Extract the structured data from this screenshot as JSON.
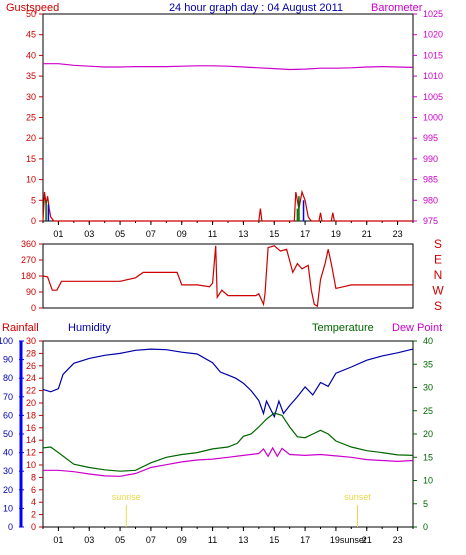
{
  "title": "24 hour graph day : 04 August 2011",
  "colors": {
    "red": "#cc0000",
    "magenta": "#cc00cc",
    "blue": "#0000aa",
    "bright_blue": "#0000ff",
    "green": "#006600",
    "dark_green": "#008000",
    "yellow": "#e8d84a",
    "grid": "#000000"
  },
  "chart_data": [
    {
      "type": "line",
      "name": "gust-barometer",
      "labels": {
        "left": "Gustspeed",
        "right": "Barometer"
      },
      "x_ticks": [
        "01",
        "03",
        "05",
        "07",
        "09",
        "11",
        "13",
        "15",
        "17",
        "19",
        "21",
        "23"
      ],
      "x_range": [
        0,
        24
      ],
      "y_left": {
        "range": [
          0,
          50
        ],
        "ticks": [
          "0",
          "5",
          "10",
          "15",
          "20",
          "25",
          "30",
          "35",
          "40",
          "45",
          "50"
        ]
      },
      "y_right": {
        "range": [
          975,
          1025
        ],
        "ticks": [
          "975",
          "980",
          "985",
          "990",
          "995",
          "1000",
          "1005",
          "1010",
          "1015",
          "1020",
          "1025"
        ]
      },
      "series": [
        {
          "name": "Barometer",
          "axis": "right",
          "color": "magenta",
          "points": [
            [
              0,
              1013
            ],
            [
              1,
              1013
            ],
            [
              2,
              1012.6
            ],
            [
              3,
              1012.4
            ],
            [
              4,
              1012.2
            ],
            [
              5,
              1012.2
            ],
            [
              6,
              1012.3
            ],
            [
              7,
              1012.3
            ],
            [
              8,
              1012.3
            ],
            [
              9,
              1012.4
            ],
            [
              10,
              1012.5
            ],
            [
              11,
              1012.5
            ],
            [
              12,
              1012.4
            ],
            [
              13,
              1012.2
            ],
            [
              14,
              1012
            ],
            [
              15,
              1011.8
            ],
            [
              16,
              1011.6
            ],
            [
              17,
              1011.7
            ],
            [
              18,
              1011.9
            ],
            [
              19,
              1011.9
            ],
            [
              20,
              1012
            ],
            [
              21,
              1012.2
            ],
            [
              22,
              1012.3
            ],
            [
              23,
              1012.2
            ],
            [
              24,
              1012.1
            ]
          ]
        },
        {
          "name": "Gustspeed",
          "axis": "left",
          "color": "red",
          "points": [
            [
              0,
              0
            ],
            [
              0.1,
              7
            ],
            [
              0.2,
              4
            ],
            [
              0.3,
              6
            ],
            [
              0.4,
              3
            ],
            [
              0.5,
              1
            ],
            [
              0.7,
              0
            ],
            [
              14.0,
              0
            ],
            [
              14.1,
              3
            ],
            [
              14.2,
              0
            ],
            [
              16.3,
              0
            ],
            [
              16.4,
              7
            ],
            [
              16.6,
              3
            ],
            [
              16.8,
              7
            ],
            [
              17.0,
              5
            ],
            [
              17.2,
              1
            ],
            [
              17.4,
              0
            ],
            [
              17.9,
              0
            ],
            [
              18.0,
              2
            ],
            [
              18.1,
              0
            ],
            [
              18.7,
              0
            ],
            [
              18.8,
              2
            ],
            [
              18.9,
              0
            ],
            [
              24,
              0
            ]
          ]
        }
      ]
    },
    {
      "type": "line",
      "name": "wind-direction",
      "labels": {
        "right_letters": [
          "S",
          "E",
          "N",
          "W",
          "S"
        ]
      },
      "x_range": [
        0,
        24
      ],
      "y_left": {
        "range": [
          0,
          360
        ],
        "ticks": [
          "0",
          "90",
          "180",
          "270",
          "360"
        ]
      },
      "series": [
        {
          "name": "Wind Direction",
          "color": "red",
          "points": [
            [
              0,
              180
            ],
            [
              0.3,
              175
            ],
            [
              0.6,
              100
            ],
            [
              0.9,
              100
            ],
            [
              1.2,
              150
            ],
            [
              3,
              150
            ],
            [
              5,
              150
            ],
            [
              6,
              170
            ],
            [
              6.5,
              200
            ],
            [
              8,
              200
            ],
            [
              8.7,
              200
            ],
            [
              9,
              130
            ],
            [
              10,
              130
            ],
            [
              10.8,
              120
            ],
            [
              11,
              140
            ],
            [
              11.2,
              350
            ],
            [
              11.3,
              60
            ],
            [
              11.6,
              100
            ],
            [
              12,
              70
            ],
            [
              13,
              70
            ],
            [
              13.8,
              70
            ],
            [
              14,
              80
            ],
            [
              14.3,
              20
            ],
            [
              14.4,
              80
            ],
            [
              14.6,
              340
            ],
            [
              15,
              350
            ],
            [
              15.4,
              320
            ],
            [
              15.8,
              330
            ],
            [
              16.2,
              200
            ],
            [
              16.5,
              250
            ],
            [
              16.8,
              220
            ],
            [
              17.2,
              240
            ],
            [
              17.4,
              100
            ],
            [
              17.6,
              20
            ],
            [
              17.8,
              10
            ],
            [
              18.0,
              160
            ],
            [
              18.3,
              250
            ],
            [
              18.5,
              330
            ],
            [
              18.7,
              250
            ],
            [
              19.0,
              110
            ],
            [
              19.5,
              120
            ],
            [
              20,
              130
            ],
            [
              22,
              130
            ],
            [
              24,
              130
            ]
          ]
        }
      ]
    },
    {
      "type": "line",
      "name": "rain-humidity-temperature",
      "labels": {
        "rainfall": "Rainfall",
        "humidity": "Humidity",
        "temperature": "Temperature",
        "dewpoint": "Dew Point"
      },
      "x_ticks": [
        "01",
        "03",
        "05",
        "07",
        "09",
        "11",
        "13",
        "15",
        "17",
        "19",
        "21",
        "23"
      ],
      "x_tick_overrides": {
        "19": "19sunset"
      },
      "x_range": [
        0,
        24
      ],
      "rain_axis": {
        "range": [
          0,
          100
        ],
        "ticks": [
          "0",
          "10",
          "20",
          "30",
          "40",
          "50",
          "60",
          "70",
          "80",
          "90",
          "100"
        ]
      },
      "humidity_axis": {
        "range": [
          0,
          30
        ],
        "ticks": [
          "0",
          "2",
          "4",
          "6",
          "8",
          "10",
          "12",
          "14",
          "16",
          "18",
          "20",
          "22",
          "24",
          "26",
          "28",
          "30"
        ]
      },
      "temperature_axis": {
        "range": [
          0,
          40
        ],
        "ticks": [
          "0",
          "5",
          "10",
          "15",
          "20",
          "25",
          "30",
          "35",
          "40"
        ]
      },
      "markers": [
        {
          "label": "sunrise",
          "x": 5.4
        },
        {
          "label": "sunset",
          "x": 20.4
        }
      ],
      "series": [
        {
          "name": "Humidity",
          "axis": "humidity",
          "color": "blue",
          "points": [
            [
              0,
              22.2
            ],
            [
              0.5,
              21.8
            ],
            [
              1,
              22.3
            ],
            [
              1.3,
              24.6
            ],
            [
              2,
              26.4
            ],
            [
              3,
              27.2
            ],
            [
              4,
              27.7
            ],
            [
              5,
              28
            ],
            [
              6,
              28.5
            ],
            [
              7,
              28.7
            ],
            [
              8,
              28.6
            ],
            [
              9,
              28.2
            ],
            [
              10,
              27.9
            ],
            [
              11,
              26.5
            ],
            [
              11.5,
              25
            ],
            [
              12,
              24.5
            ],
            [
              12.5,
              24
            ],
            [
              13,
              23.2
            ],
            [
              13.5,
              22
            ],
            [
              14,
              20.4
            ],
            [
              14.3,
              18.3
            ],
            [
              14.5,
              20.3
            ],
            [
              15,
              17.8
            ],
            [
              15.3,
              20.3
            ],
            [
              15.6,
              18.3
            ],
            [
              16,
              19.6
            ],
            [
              16.5,
              21
            ],
            [
              17,
              22.6
            ],
            [
              17.5,
              21.3
            ],
            [
              18,
              23.3
            ],
            [
              18.5,
              22.7
            ],
            [
              19,
              24.8
            ],
            [
              20,
              25.8
            ],
            [
              21,
              26.9
            ],
            [
              22,
              27.6
            ],
            [
              23,
              28.1
            ],
            [
              24,
              28.7
            ]
          ]
        },
        {
          "name": "Temperature",
          "axis": "temperature",
          "color": "green",
          "points": [
            [
              0,
              17
            ],
            [
              0.5,
              17.2
            ],
            [
              1,
              16
            ],
            [
              2,
              13.5
            ],
            [
              3,
              12.8
            ],
            [
              4,
              12.3
            ],
            [
              5,
              12
            ],
            [
              6,
              12.2
            ],
            [
              7,
              13.8
            ],
            [
              8,
              15
            ],
            [
              9,
              15.6
            ],
            [
              10,
              16
            ],
            [
              11,
              16.8
            ],
            [
              12,
              17.2
            ],
            [
              12.6,
              18
            ],
            [
              13,
              19.5
            ],
            [
              13.5,
              20
            ],
            [
              14,
              21.5
            ],
            [
              14.5,
              23.2
            ],
            [
              15,
              24.5
            ],
            [
              15.5,
              24
            ],
            [
              16,
              21.5
            ],
            [
              16.5,
              19.4
            ],
            [
              17,
              19.2
            ],
            [
              17.5,
              20
            ],
            [
              18,
              20.8
            ],
            [
              18.5,
              20
            ],
            [
              19,
              18.5
            ],
            [
              20,
              17.2
            ],
            [
              21,
              16.4
            ],
            [
              22,
              16
            ],
            [
              23,
              15.5
            ],
            [
              24,
              15.4
            ]
          ]
        },
        {
          "name": "Dew Point",
          "axis": "temperature",
          "color": "magenta",
          "points": [
            [
              0,
              12.2
            ],
            [
              1,
              12.2
            ],
            [
              2,
              11.9
            ],
            [
              3,
              11.4
            ],
            [
              4,
              11
            ],
            [
              5,
              10.9
            ],
            [
              6,
              11.5
            ],
            [
              7,
              12.8
            ],
            [
              8,
              13.4
            ],
            [
              9,
              14
            ],
            [
              10,
              14.4
            ],
            [
              11,
              14.6
            ],
            [
              12,
              15
            ],
            [
              13,
              15.4
            ],
            [
              14,
              15.8
            ],
            [
              14.3,
              16.8
            ],
            [
              14.6,
              15.2
            ],
            [
              14.9,
              17
            ],
            [
              15.2,
              15.2
            ],
            [
              15.5,
              16.9
            ],
            [
              16,
              15.6
            ],
            [
              17,
              15.4
            ],
            [
              18,
              15.6
            ],
            [
              19,
              15.3
            ],
            [
              20,
              15
            ],
            [
              21,
              14.5
            ],
            [
              22,
              14.3
            ],
            [
              23,
              14.1
            ],
            [
              24,
              14.3
            ]
          ]
        }
      ]
    }
  ]
}
